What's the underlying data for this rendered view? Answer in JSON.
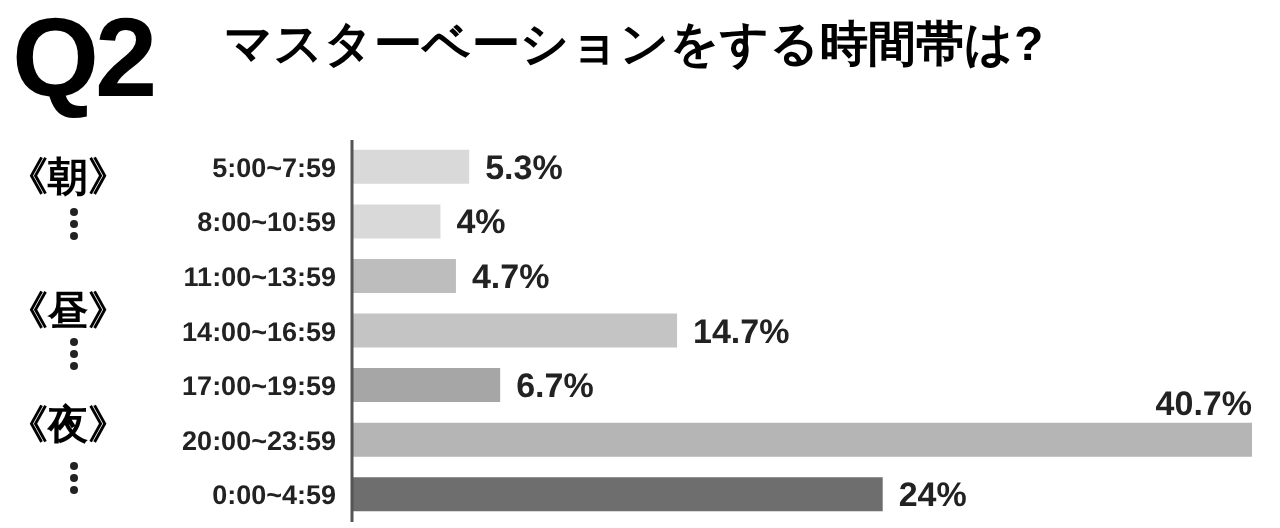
{
  "chart_data": {
    "type": "bar",
    "orientation": "horizontal",
    "title": "Q2",
    "subtitle": "マスターベーションをする時間帯は?",
    "categories": [
      "5:00~7:59",
      "8:00~10:59",
      "11:00~13:59",
      "14:00~16:59",
      "17:00~19:59",
      "20:00~23:59",
      "0:00~4:59"
    ],
    "values": [
      5.3,
      4,
      4.7,
      14.7,
      6.7,
      40.7,
      24
    ],
    "value_labels": [
      "5.3%",
      "4%",
      "4.7%",
      "14.7%",
      "6.7%",
      "40.7%",
      "24%"
    ],
    "colors": [
      "#d9d9d9",
      "#d9d9d9",
      "#bdbdbd",
      "#c4c4c4",
      "#a6a6a6",
      "#b5b5b5",
      "#6e6e6e"
    ],
    "tick_labels": "y",
    "annotations": [
      "《朝》",
      "《昼》",
      "《夜》"
    ]
  }
}
